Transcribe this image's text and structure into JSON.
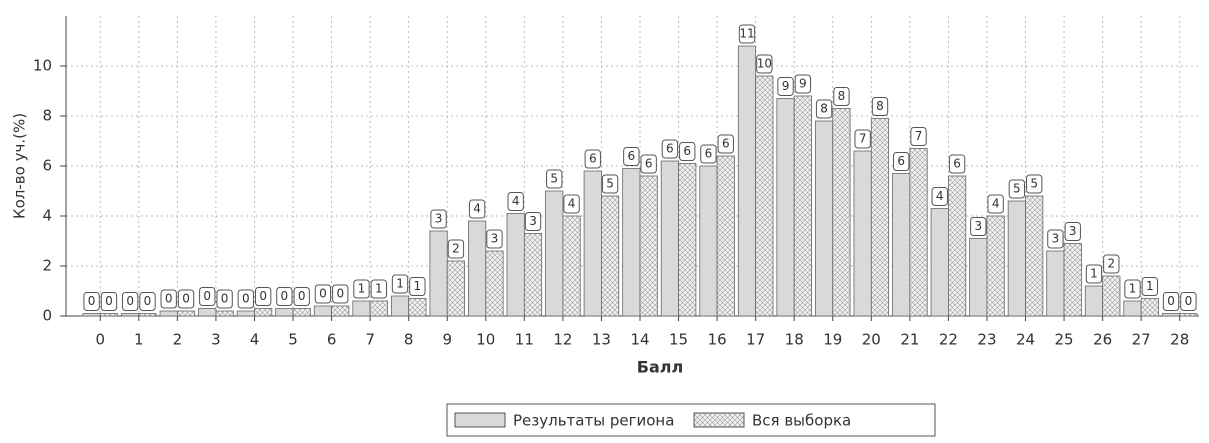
{
  "chart_data": {
    "type": "bar",
    "x_label": "Балл",
    "y_label": "Кол-во уч.(%)",
    "categories": [
      "0",
      "1",
      "2",
      "3",
      "4",
      "5",
      "6",
      "7",
      "8",
      "9",
      "10",
      "11",
      "12",
      "13",
      "14",
      "15",
      "16",
      "17",
      "18",
      "19",
      "20",
      "21",
      "22",
      "23",
      "24",
      "25",
      "26",
      "27",
      "28"
    ],
    "series": [
      {
        "name": "Результаты региона",
        "color": "#d9d9d9",
        "values": [
          0.1,
          0.1,
          0.2,
          0.3,
          0.2,
          0.3,
          0.4,
          0.6,
          0.8,
          3.4,
          3.8,
          4.1,
          5.0,
          5.8,
          5.9,
          6.2,
          6.0,
          10.8,
          8.7,
          7.8,
          6.6,
          5.7,
          4.3,
          3.1,
          4.6,
          2.6,
          1.2,
          0.6,
          0.1
        ],
        "value_labels": [
          "0",
          "0",
          "0",
          "0",
          "0",
          "0",
          "0",
          "1",
          "1",
          "3",
          "4",
          "4",
          "5",
          "6",
          "6",
          "6",
          "6",
          "11",
          "9",
          "8",
          "7",
          "6",
          "4",
          "3",
          "5",
          "3",
          "1",
          "1",
          "0"
        ]
      },
      {
        "name": "Вся выборка",
        "color": "#eeeeee",
        "hatch": true,
        "values": [
          0.1,
          0.1,
          0.2,
          0.2,
          0.3,
          0.3,
          0.4,
          0.6,
          0.7,
          2.2,
          2.6,
          3.3,
          4.0,
          4.8,
          5.6,
          6.1,
          6.4,
          9.6,
          8.8,
          8.3,
          7.9,
          6.7,
          5.6,
          4.0,
          4.8,
          2.9,
          1.6,
          0.7,
          0.1
        ],
        "value_labels": [
          "0",
          "0",
          "0",
          "0",
          "0",
          "0",
          "0",
          "1",
          "1",
          "2",
          "3",
          "3",
          "4",
          "5",
          "6",
          "6",
          "6",
          "10",
          "9",
          "8",
          "8",
          "7",
          "6",
          "4",
          "5",
          "3",
          "2",
          "1",
          "0"
        ]
      }
    ],
    "ylim": [
      0,
      12
    ],
    "yticks": [
      0,
      2,
      4,
      6,
      8,
      10
    ],
    "grid": true,
    "legend": "bottom"
  }
}
